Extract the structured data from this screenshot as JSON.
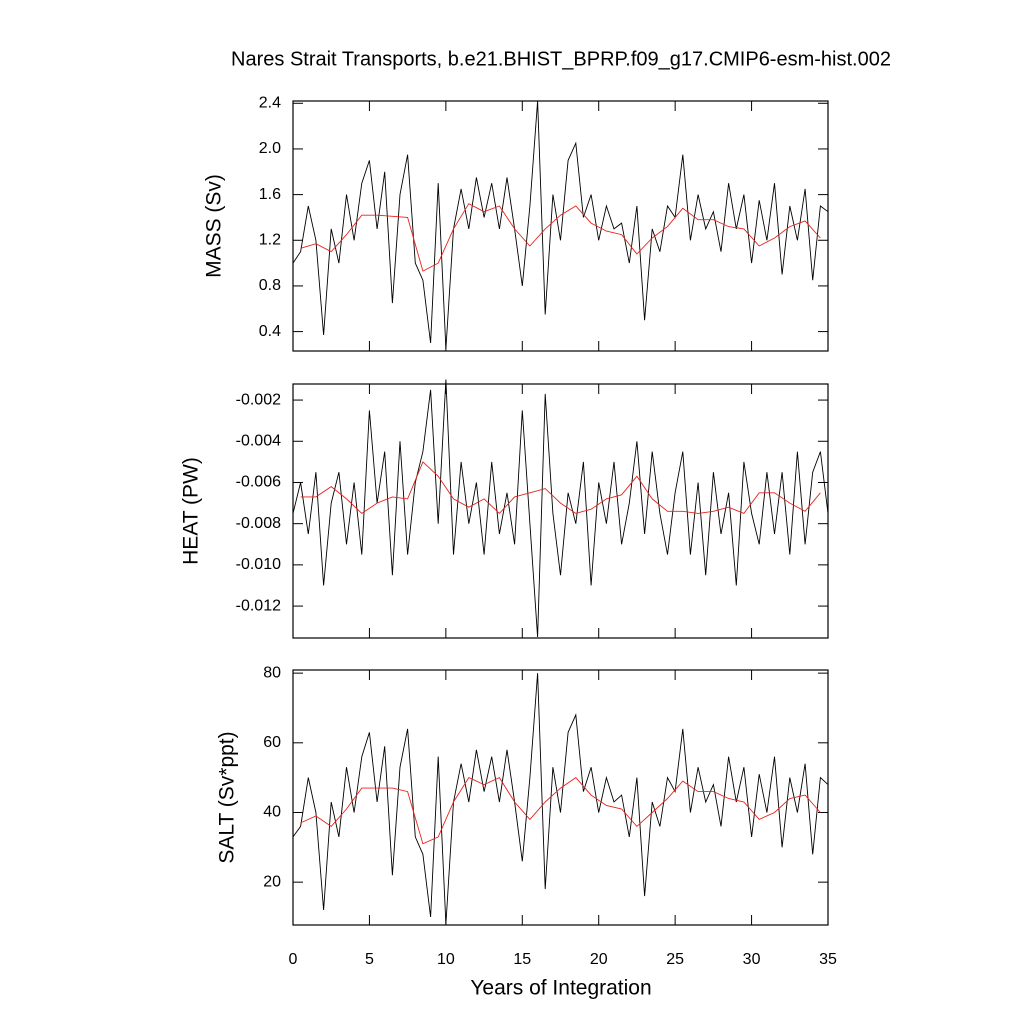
{
  "chart_data": {
    "type": "line",
    "title": "Nares Strait Transports, b.e21.BHIST_BPRP.f09_g17.CMIP6-esm-hist.002",
    "xlabel": "Years of Integration",
    "xlim": [
      0,
      35
    ],
    "xticks": [
      0,
      5,
      10,
      15,
      20,
      25,
      30,
      35
    ],
    "panels": [
      {
        "ylabel": "MASS (Sv)",
        "ylim": [
          0.23,
          2.42
        ],
        "yticks": [
          0.4,
          0.8,
          1.2,
          1.6,
          {
            "value": 2,
            "label": "2.0"
          },
          2.4
        ],
        "series": [
          {
            "color": "#000000",
            "x": [
              0,
              0.5,
              1,
              1.5,
              2,
              2.5,
              3,
              3.5,
              4,
              4.5,
              5,
              5.5,
              6,
              6.5,
              7,
              7.5,
              8,
              8.5,
              9,
              9.5,
              10,
              10.5,
              11,
              11.5,
              12,
              12.5,
              13,
              13.5,
              14,
              14.5,
              15,
              15.5,
              16,
              16.5,
              17,
              17.5,
              18,
              18.5,
              19,
              19.5,
              20,
              20.5,
              21,
              21.5,
              22,
              22.5,
              23,
              23.5,
              24,
              24.5,
              25,
              25.5,
              26,
              26.5,
              27,
              27.5,
              28,
              28.5,
              29,
              29.5,
              30,
              30.5,
              31,
              31.5,
              32,
              32.5,
              33,
              33.5,
              34,
              34.5,
              35
            ],
            "values": [
              1.0,
              1.1,
              1.5,
              1.2,
              0.37,
              1.3,
              1.0,
              1.6,
              1.2,
              1.7,
              1.9,
              1.3,
              1.8,
              0.65,
              1.6,
              1.95,
              1.0,
              0.85,
              0.3,
              1.7,
              0.25,
              1.3,
              1.65,
              1.3,
              1.75,
              1.4,
              1.7,
              1.3,
              1.75,
              1.3,
              0.8,
              1.5,
              2.42,
              0.55,
              1.6,
              1.2,
              1.9,
              2.05,
              1.4,
              1.6,
              1.2,
              1.5,
              1.3,
              1.35,
              1.0,
              1.5,
              0.5,
              1.3,
              1.1,
              1.5,
              1.4,
              1.95,
              1.2,
              1.6,
              1.3,
              1.45,
              1.1,
              1.7,
              1.3,
              1.6,
              1.0,
              1.55,
              1.2,
              1.7,
              0.9,
              1.5,
              1.2,
              1.65,
              0.85,
              1.5,
              1.45
            ]
          },
          {
            "color": "#e8221c",
            "x": [
              0.5,
              1.5,
              2.5,
              3.5,
              4.5,
              5.5,
              6.5,
              7.5,
              8.5,
              9.5,
              10.5,
              11.5,
              12.5,
              13.5,
              14.5,
              15.5,
              16.5,
              17.5,
              18.5,
              19.5,
              20.5,
              21.5,
              22.5,
              23.5,
              24.5,
              25.5,
              26.5,
              27.5,
              28.5,
              29.5,
              30.5,
              31.5,
              32.5,
              33.5,
              34.5
            ],
            "values": [
              1.13,
              1.17,
              1.1,
              1.25,
              1.42,
              1.42,
              1.41,
              1.4,
              0.93,
              1.0,
              1.3,
              1.52,
              1.45,
              1.5,
              1.3,
              1.15,
              1.3,
              1.42,
              1.5,
              1.35,
              1.28,
              1.25,
              1.08,
              1.22,
              1.32,
              1.48,
              1.38,
              1.38,
              1.32,
              1.3,
              1.15,
              1.22,
              1.32,
              1.37,
              1.22
            ]
          }
        ]
      },
      {
        "ylabel": "HEAT (PW)",
        "ylim": [
          -0.01355,
          -0.00122
        ],
        "yticks": [
          {
            "value": -0.012,
            "label": "-0.012"
          },
          {
            "value": -0.01,
            "label": "-0.010"
          },
          -0.008,
          -0.006,
          -0.004,
          -0.002
        ],
        "series": [
          {
            "color": "#000000",
            "x": [
              0,
              0.5,
              1,
              1.5,
              2,
              2.5,
              3,
              3.5,
              4,
              4.5,
              5,
              5.5,
              6,
              6.5,
              7,
              7.5,
              8,
              8.5,
              9,
              9.5,
              10,
              10.5,
              11,
              11.5,
              12,
              12.5,
              13,
              13.5,
              14,
              14.5,
              15,
              15.5,
              16,
              16.5,
              17,
              17.5,
              18,
              18.5,
              19,
              19.5,
              20,
              20.5,
              21,
              21.5,
              22,
              22.5,
              23,
              23.5,
              24,
              24.5,
              25,
              25.5,
              26,
              26.5,
              27,
              27.5,
              28,
              28.5,
              29,
              29.5,
              30,
              30.5,
              31,
              31.5,
              32,
              32.5,
              33,
              33.5,
              34,
              34.5,
              35
            ],
            "values": [
              -0.0075,
              -0.006,
              -0.0085,
              -0.0055,
              -0.011,
              -0.007,
              -0.0055,
              -0.009,
              -0.006,
              -0.0095,
              -0.0025,
              -0.007,
              -0.0045,
              -0.0105,
              -0.004,
              -0.0095,
              -0.006,
              -0.0045,
              -0.0015,
              -0.008,
              -0.001,
              -0.0095,
              -0.005,
              -0.008,
              -0.006,
              -0.0095,
              -0.005,
              -0.0085,
              -0.0065,
              -0.009,
              -0.0025,
              -0.008,
              -0.0135,
              -0.0017,
              -0.0075,
              -0.0105,
              -0.0065,
              -0.008,
              -0.005,
              -0.011,
              -0.006,
              -0.008,
              -0.005,
              -0.009,
              -0.007,
              -0.004,
              -0.0085,
              -0.0045,
              -0.0075,
              -0.0095,
              -0.0065,
              -0.0045,
              -0.0095,
              -0.006,
              -0.0105,
              -0.0055,
              -0.0085,
              -0.0065,
              -0.011,
              -0.005,
              -0.0075,
              -0.009,
              -0.0055,
              -0.0085,
              -0.0055,
              -0.0095,
              -0.0045,
              -0.009,
              -0.0055,
              -0.0045,
              -0.0075
            ]
          },
          {
            "color": "#e8221c",
            "x": [
              0.5,
              1.5,
              2.5,
              3.5,
              4.5,
              5.5,
              6.5,
              7.5,
              8.5,
              9.5,
              10.5,
              11.5,
              12.5,
              13.5,
              14.5,
              15.5,
              16.5,
              17.5,
              18.5,
              19.5,
              20.5,
              21.5,
              22.5,
              23.5,
              24.5,
              25.5,
              26.5,
              27.5,
              28.5,
              29.5,
              30.5,
              31.5,
              32.5,
              33.5,
              34.5
            ],
            "values": [
              -0.0067,
              -0.0067,
              -0.0062,
              -0.0068,
              -0.0075,
              -0.007,
              -0.0067,
              -0.0068,
              -0.005,
              -0.0057,
              -0.0068,
              -0.0072,
              -0.0068,
              -0.0075,
              -0.0067,
              -0.0065,
              -0.0063,
              -0.007,
              -0.0075,
              -0.0073,
              -0.0068,
              -0.0066,
              -0.0057,
              -0.0068,
              -0.0074,
              -0.0074,
              -0.0075,
              -0.0074,
              -0.0072,
              -0.0075,
              -0.0065,
              -0.0065,
              -0.007,
              -0.0074,
              -0.0065
            ]
          }
        ]
      },
      {
        "ylabel": "SALT (Sv*ppt)",
        "ylim": [
          7.7,
          80.9
        ],
        "yticks": [
          20,
          40,
          60,
          80
        ],
        "series": [
          {
            "color": "#000000",
            "x": [
              0,
              0.5,
              1,
              1.5,
              2,
              2.5,
              3,
              3.5,
              4,
              4.5,
              5,
              5.5,
              6,
              6.5,
              7,
              7.5,
              8,
              8.5,
              9,
              9.5,
              10,
              10.5,
              11,
              11.5,
              12,
              12.5,
              13,
              13.5,
              14,
              14.5,
              15,
              15.5,
              16,
              16.5,
              17,
              17.5,
              18,
              18.5,
              19,
              19.5,
              20,
              20.5,
              21,
              21.5,
              22,
              22.5,
              23,
              23.5,
              24,
              24.5,
              25,
              25.5,
              26,
              26.5,
              27,
              27.5,
              28,
              28.5,
              29,
              29.5,
              30,
              30.5,
              31,
              31.5,
              32,
              32.5,
              33,
              33.5,
              34,
              34.5,
              35
            ],
            "values": [
              33,
              36,
              50,
              40,
              12,
              43,
              33,
              53,
              40,
              56,
              63,
              43,
              59,
              22,
              53,
              64,
              33,
              28,
              10,
              56,
              8,
              43,
              54,
              43,
              58,
              46,
              56,
              43,
              58,
              43,
              26,
              50,
              80,
              18,
              53,
              40,
              63,
              68,
              46,
              53,
              40,
              50,
              43,
              45,
              33,
              50,
              16,
              43,
              36,
              50,
              46,
              64,
              40,
              53,
              43,
              48,
              36,
              56,
              43,
              53,
              33,
              51,
              40,
              56,
              30,
              50,
              40,
              54,
              28,
              50,
              48
            ]
          },
          {
            "color": "#e8221c",
            "x": [
              0.5,
              1.5,
              2.5,
              3.5,
              4.5,
              5.5,
              6.5,
              7.5,
              8.5,
              9.5,
              10.5,
              11.5,
              12.5,
              13.5,
              14.5,
              15.5,
              16.5,
              17.5,
              18.5,
              19.5,
              20.5,
              21.5,
              22.5,
              23.5,
              24.5,
              25.5,
              26.5,
              27.5,
              28.5,
              29.5,
              30.5,
              31.5,
              32.5,
              33.5,
              34.5
            ],
            "values": [
              37,
              39,
              36,
              41,
              47,
              47,
              47,
              46,
              31,
              33,
              43,
              50,
              48,
              50,
              43,
              38,
              43,
              47,
              50,
              45,
              42,
              41,
              36,
              40,
              44,
              49,
              46,
              46,
              44,
              43,
              38,
              40,
              44,
              45,
              40
            ]
          }
        ]
      }
    ]
  }
}
